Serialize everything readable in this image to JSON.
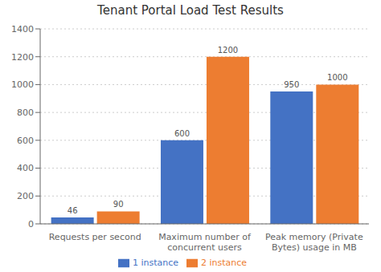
{
  "chart_data": {
    "type": "bar",
    "title": "Tenant Portal Load Test Results",
    "categories": [
      "Requests per second",
      "Maximum number of\nconcurrent users",
      "Peak memory (Private\nBytes) usage in MB"
    ],
    "series": [
      {
        "name": "1 instance",
        "color": "#4472C4",
        "values": [
          46,
          600,
          950
        ]
      },
      {
        "name": "2 instance",
        "color": "#ED7D31",
        "values": [
          90,
          1200,
          1000
        ]
      }
    ],
    "ylim": [
      0,
      1400
    ],
    "yticks": [
      0,
      200,
      400,
      600,
      800,
      1000,
      1200,
      1400
    ],
    "grid": true,
    "legend": "bottom",
    "data_labels": true
  }
}
